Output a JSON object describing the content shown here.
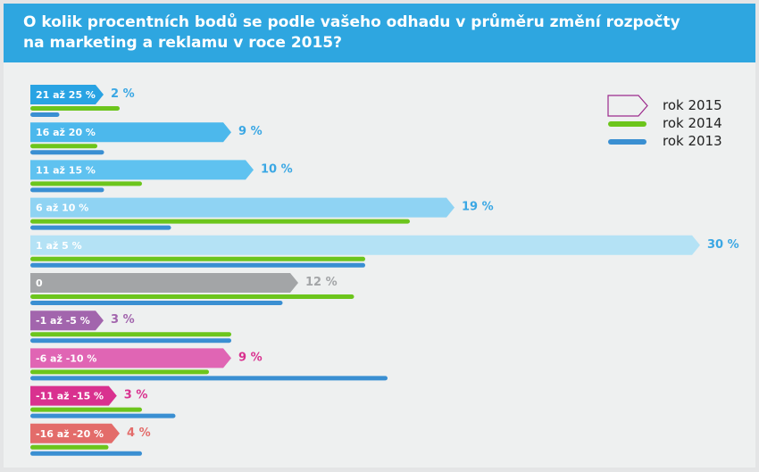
{
  "colors": {
    "header": "#2ea6e0",
    "background": "#eef0f0",
    "series_2014": "#6cc51c",
    "series_2013": "#3a8fd2",
    "series_2015_outline": "#9c2a8c"
  },
  "chart_data": {
    "type": "bar",
    "title": "O kolik procentních bodů se podle vašeho odhadu v průměru změní rozpočty na marketing a reklamu v roce 2015?",
    "categories": [
      "21 až 25 %",
      "16 až 20 %",
      "11 až 15 %",
      "6 až 10 %",
      "1 až 5 %",
      "0",
      "-1 až -5 %",
      "-6 až -10 %",
      "-11 až -15 %",
      "-16 až -20 %"
    ],
    "category_colors": [
      "#29a3e3",
      "#4cb8ec",
      "#5fc2f0",
      "#8fd3f3",
      "#b4e2f5",
      "#a3a5a7",
      "#a265ad",
      "#e065b4",
      "#d9318f",
      "#e36c6a"
    ],
    "value_label_colors": [
      "#3aa7e4",
      "#3aa7e4",
      "#3aa7e4",
      "#3aa7e4",
      "#3aa7e4",
      "#a3a5a7",
      "#a265ad",
      "#d9318f",
      "#d9318f",
      "#e36c6a"
    ],
    "series": [
      {
        "name": "rok 2015",
        "values": [
          2,
          9,
          10,
          19,
          30,
          12,
          3,
          9,
          3,
          4
        ],
        "labels": [
          "2 %",
          "9 %",
          "10 %",
          "19 %",
          "30 %",
          "12 %",
          "3 %",
          "9 %",
          "3 %",
          "4 %"
        ]
      },
      {
        "name": "rok 2014",
        "values": [
          4,
          3,
          5,
          17,
          15,
          14.5,
          9,
          8,
          5,
          3.5
        ]
      },
      {
        "name": "rok 2013",
        "values": [
          1.3,
          3.3,
          3.3,
          6.3,
          15,
          11.3,
          9,
          16,
          6.5,
          5
        ]
      }
    ],
    "xlim": [
      0,
      30
    ],
    "legend_position": "top-right"
  }
}
